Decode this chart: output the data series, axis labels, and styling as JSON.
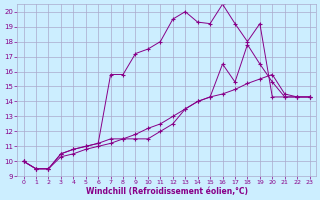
{
  "background_color": "#cceeff",
  "grid_color": "#aaaacc",
  "line_color": "#880088",
  "xlim": [
    -0.5,
    23.5
  ],
  "ylim": [
    9,
    20.5
  ],
  "xticks": [
    0,
    1,
    2,
    3,
    4,
    5,
    6,
    7,
    8,
    9,
    10,
    11,
    12,
    13,
    14,
    15,
    16,
    17,
    18,
    19,
    20,
    21,
    22,
    23
  ],
  "yticks": [
    9,
    10,
    11,
    12,
    13,
    14,
    15,
    16,
    17,
    18,
    19,
    20
  ],
  "xlabel": "Windchill (Refroidissement éolien,°C)",
  "series1_x": [
    0,
    1,
    2,
    3,
    4,
    5,
    6,
    7,
    8,
    9,
    10,
    11,
    12,
    13,
    14,
    15,
    16,
    17,
    18,
    19,
    20,
    21,
    22,
    23
  ],
  "series1_y": [
    10.0,
    9.5,
    9.5,
    10.5,
    10.8,
    11.0,
    11.2,
    15.8,
    15.8,
    17.2,
    17.5,
    18.0,
    19.5,
    20.0,
    19.3,
    19.2,
    20.5,
    19.2,
    18.0,
    19.2,
    14.3,
    14.3,
    14.3,
    14.3
  ],
  "series2_x": [
    0,
    1,
    2,
    3,
    4,
    5,
    6,
    7,
    8,
    9,
    10,
    11,
    12,
    13,
    14,
    15,
    16,
    17,
    18,
    19,
    20,
    21,
    22,
    23
  ],
  "series2_y": [
    10.0,
    9.5,
    9.5,
    10.5,
    10.8,
    11.0,
    11.2,
    11.5,
    11.5,
    11.5,
    11.5,
    12.0,
    12.5,
    13.5,
    14.0,
    14.3,
    16.5,
    15.3,
    17.8,
    16.5,
    15.3,
    14.3,
    14.3,
    14.3
  ],
  "series3_x": [
    0,
    1,
    2,
    3,
    4,
    5,
    6,
    7,
    8,
    9,
    10,
    11,
    12,
    13,
    14,
    15,
    16,
    17,
    18,
    19,
    20,
    21,
    22,
    23
  ],
  "series3_y": [
    10.0,
    9.5,
    9.5,
    10.3,
    10.5,
    10.8,
    11.0,
    11.2,
    11.5,
    11.8,
    12.2,
    12.5,
    13.0,
    13.5,
    14.0,
    14.3,
    14.5,
    14.8,
    15.2,
    15.5,
    15.8,
    14.5,
    14.3,
    14.3
  ]
}
